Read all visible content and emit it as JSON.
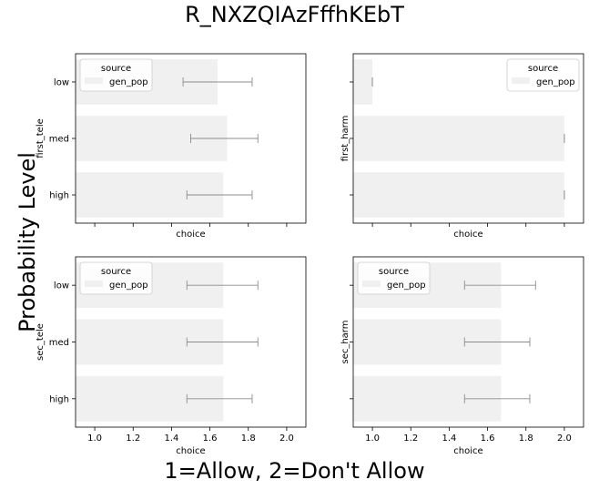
{
  "figure": {
    "suptitle": "R_NXZQIAzFffhKEbT",
    "supylabel": "Probability Level",
    "supxlabel": "1=Allow, 2=Don't Allow"
  },
  "chart_data": [
    {
      "type": "bar",
      "orientation": "horizontal",
      "categories": [
        "low",
        "med",
        "high"
      ],
      "ylabel": "first_tele",
      "xlabel": "choice",
      "xlim": [
        0.9,
        2.1
      ],
      "xticks": [
        1.0,
        1.2,
        1.4,
        1.6,
        1.8,
        2.0
      ],
      "show_xtick_labels": false,
      "show_ytick_labels": true,
      "legend": {
        "title": "source",
        "entries": [
          "gen_pop"
        ],
        "position": "top-left"
      },
      "series": [
        {
          "name": "gen_pop",
          "values": [
            1.64,
            1.69,
            1.67
          ],
          "ci": [
            [
              1.46,
              1.82
            ],
            [
              1.5,
              1.85
            ],
            [
              1.48,
              1.82
            ]
          ]
        }
      ],
      "bar_color": "#f0f0f0"
    },
    {
      "type": "bar",
      "orientation": "horizontal",
      "categories": [
        "low",
        "med",
        "high"
      ],
      "ylabel": "first_harm",
      "xlabel": "choice",
      "xlim": [
        0.9,
        2.1
      ],
      "xticks": [
        1.0,
        1.2,
        1.4,
        1.6,
        1.8,
        2.0
      ],
      "show_xtick_labels": false,
      "show_ytick_labels": false,
      "legend": {
        "title": "source",
        "entries": [
          "gen_pop"
        ],
        "position": "top-right"
      },
      "series": [
        {
          "name": "gen_pop",
          "values": [
            1.0,
            2.0,
            2.0
          ],
          "ci": [
            [
              1.0,
              1.0
            ],
            [
              2.0,
              2.0
            ],
            [
              2.0,
              2.0
            ]
          ]
        }
      ],
      "bar_color": "#f0f0f0"
    },
    {
      "type": "bar",
      "orientation": "horizontal",
      "categories": [
        "low",
        "med",
        "high"
      ],
      "ylabel": "sec_tele",
      "xlabel": "choice",
      "xlim": [
        0.9,
        2.1
      ],
      "xticks": [
        1.0,
        1.2,
        1.4,
        1.6,
        1.8,
        2.0
      ],
      "xtick_labels": [
        "1.0",
        "1.2",
        "1.4",
        "1.6",
        "1.8",
        "2.0"
      ],
      "show_xtick_labels": true,
      "show_ytick_labels": true,
      "legend": {
        "title": "source",
        "entries": [
          "gen_pop"
        ],
        "position": "top-left"
      },
      "series": [
        {
          "name": "gen_pop",
          "values": [
            1.67,
            1.67,
            1.67
          ],
          "ci": [
            [
              1.48,
              1.85
            ],
            [
              1.48,
              1.85
            ],
            [
              1.48,
              1.82
            ]
          ]
        }
      ],
      "bar_color": "#f0f0f0"
    },
    {
      "type": "bar",
      "orientation": "horizontal",
      "categories": [
        "low",
        "med",
        "high"
      ],
      "ylabel": "sec_harm",
      "xlabel": "choice",
      "xlim": [
        0.9,
        2.1
      ],
      "xticks": [
        1.0,
        1.2,
        1.4,
        1.6,
        1.8,
        2.0
      ],
      "xtick_labels": [
        "1.0",
        "1.2",
        "1.4",
        "1.6",
        "1.8",
        "2.0"
      ],
      "show_xtick_labels": true,
      "show_ytick_labels": false,
      "legend": {
        "title": "source",
        "entries": [
          "gen_pop"
        ],
        "position": "top-left"
      },
      "series": [
        {
          "name": "gen_pop",
          "values": [
            1.67,
            1.67,
            1.67
          ],
          "ci": [
            [
              1.48,
              1.85
            ],
            [
              1.48,
              1.82
            ],
            [
              1.48,
              1.82
            ]
          ]
        }
      ],
      "bar_color": "#f0f0f0"
    }
  ]
}
